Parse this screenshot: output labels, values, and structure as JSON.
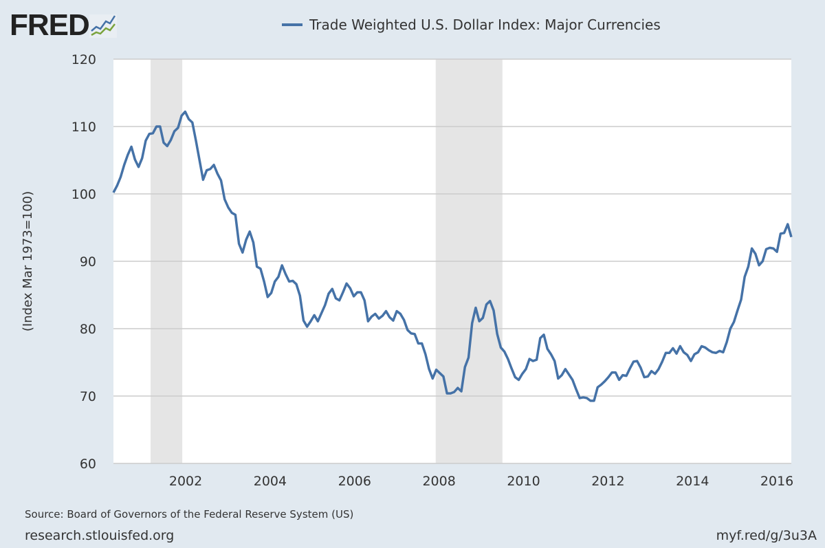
{
  "logo": {
    "text": "FRED"
  },
  "footer": {
    "source": "Source: Board of Governors of the Federal Reserve System (US)",
    "site": "research.stlouisfed.org",
    "short_link": "myf.red/g/3u3A"
  },
  "colors": {
    "line": "#4572a7",
    "recession": "#e5e5e5",
    "grid": "#cccccc",
    "background": "#e1e9f0"
  },
  "chart_data": {
    "type": "line",
    "title": "",
    "legend": [
      "Trade Weighted U.S. Dollar Index: Major Currencies"
    ],
    "legend_placement": "top-center",
    "xlabel": "",
    "ylabel": "(Index Mar 1973=100)",
    "ylim": [
      60,
      120
    ],
    "xlim": [
      2000.29,
      2016.34
    ],
    "yticks": [
      60,
      70,
      80,
      90,
      100,
      110,
      120
    ],
    "xticks": [
      2002,
      2004,
      2006,
      2008,
      2010,
      2012,
      2014,
      2016
    ],
    "grid": true,
    "recessions": [
      [
        2001.17,
        2001.92
      ],
      [
        2007.92,
        2009.5
      ]
    ],
    "series": [
      {
        "name": "Trade Weighted U.S. Dollar Index: Major Currencies",
        "frequency": "monthly",
        "values": [
          100.2,
          101.2,
          102.5,
          104.3,
          105.8,
          107,
          105.1,
          104,
          105.3,
          107.9,
          108.9,
          109,
          110,
          110,
          107.6,
          107.1,
          108,
          109.3,
          109.8,
          111.6,
          112.2,
          111.1,
          110.6,
          107.9,
          105,
          102.1,
          103.5,
          103.7,
          104.3,
          103,
          102,
          99.2,
          98,
          97.2,
          96.9,
          92.6,
          91.3,
          93.2,
          94.4,
          92.8,
          89.2,
          88.9,
          87,
          84.7,
          85.3,
          87,
          87.7,
          89.4,
          88.1,
          87,
          87.1,
          86.6,
          84.9,
          81.2,
          80.3,
          81.1,
          82,
          81.1,
          82.3,
          83.5,
          85.2,
          85.9,
          84.5,
          84.2,
          85.4,
          86.7,
          86,
          84.8,
          85.4,
          85.4,
          84.2,
          81.1,
          81.8,
          82.2,
          81.5,
          81.9,
          82.6,
          81.7,
          81.2,
          82.6,
          82.2,
          81.3,
          79.8,
          79.3,
          79.2,
          77.8,
          77.8,
          76.2,
          74,
          72.6,
          73.9,
          73.4,
          72.9,
          70.4,
          70.4,
          70.6,
          71.2,
          70.7,
          74.3,
          75.7,
          80.8,
          83.1,
          81.1,
          81.6,
          83.6,
          84.1,
          82.7,
          79.2,
          77.2,
          76.6,
          75.5,
          74.1,
          72.8,
          72.4,
          73.3,
          74,
          75.5,
          75.2,
          75.4,
          78.6,
          79.1,
          77,
          76.2,
          75.2,
          72.6,
          73.1,
          74,
          73.2,
          72.4,
          71,
          69.7,
          69.8,
          69.7,
          69.3,
          69.3,
          71.3,
          71.7,
          72.2,
          72.8,
          73.5,
          73.5,
          72.4,
          73.1,
          73,
          74.1,
          75.1,
          75.2,
          74.2,
          72.8,
          72.9,
          73.7,
          73.3,
          74,
          75.1,
          76.4,
          76.4,
          77.1,
          76.3,
          77.4,
          76.5,
          76.1,
          75.2,
          76.2,
          76.5,
          77.4,
          77.2,
          76.8,
          76.5,
          76.4,
          76.7,
          76.5,
          78,
          80,
          81,
          82.7,
          84.3,
          87.7,
          89.2,
          91.9,
          91.1,
          89.4,
          90,
          91.8,
          92,
          91.9,
          91.4,
          94.1,
          94.2,
          95.5,
          93.6
        ]
      }
    ]
  }
}
